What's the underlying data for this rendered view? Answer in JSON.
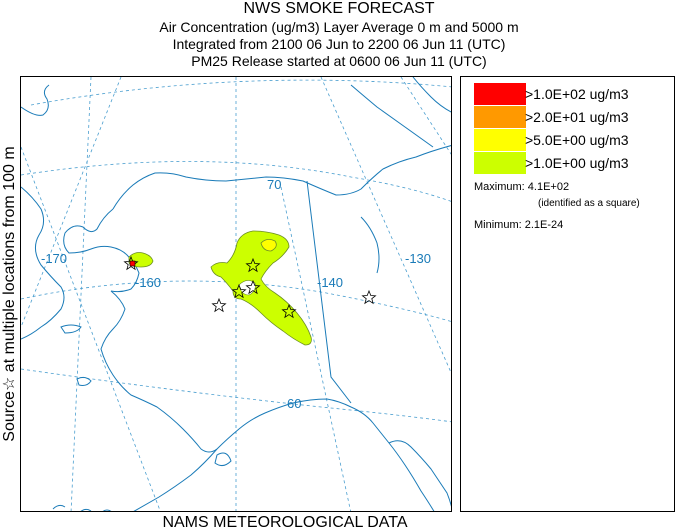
{
  "header": {
    "title": "NWS SMOKE FORECAST",
    "line2": "Air Concentration (ug/m3) Layer Average    0 m and  5000 m",
    "line3": "Integrated from 2100 06 Jun to 2200 06 Jun 11 (UTC)",
    "line4": "PM25 Release started at 0600 06 Jun 11 (UTC)"
  },
  "side_label": "Source☆ at multiple locations   from   100 m",
  "bottom_label": "NAMS METEOROLOGICAL DATA",
  "map": {
    "graticule_labels": [
      "-170",
      "-160",
      "-140",
      "-130",
      "70",
      "60"
    ],
    "colors": {
      "coast": "#1a7bb8",
      "grid": "#4a9ecf",
      "plume_outline": "#6b8e23"
    }
  },
  "legend": {
    "items": [
      {
        "label": ">1.0E+02 ug/m3",
        "color": "#ff0000"
      },
      {
        "label": ">2.0E+01 ug/m3",
        "color": "#ff9900"
      },
      {
        "label": ">5.0E+00 ug/m3",
        "color": "#ffff00"
      },
      {
        "label": ">1.0E+00 ug/m3",
        "color": "#ccff00"
      }
    ],
    "maximum": "Maximum: 4.1E+02",
    "maximum_note": "(identified as a square)",
    "minimum": "Minimum: 2.1E-24"
  }
}
